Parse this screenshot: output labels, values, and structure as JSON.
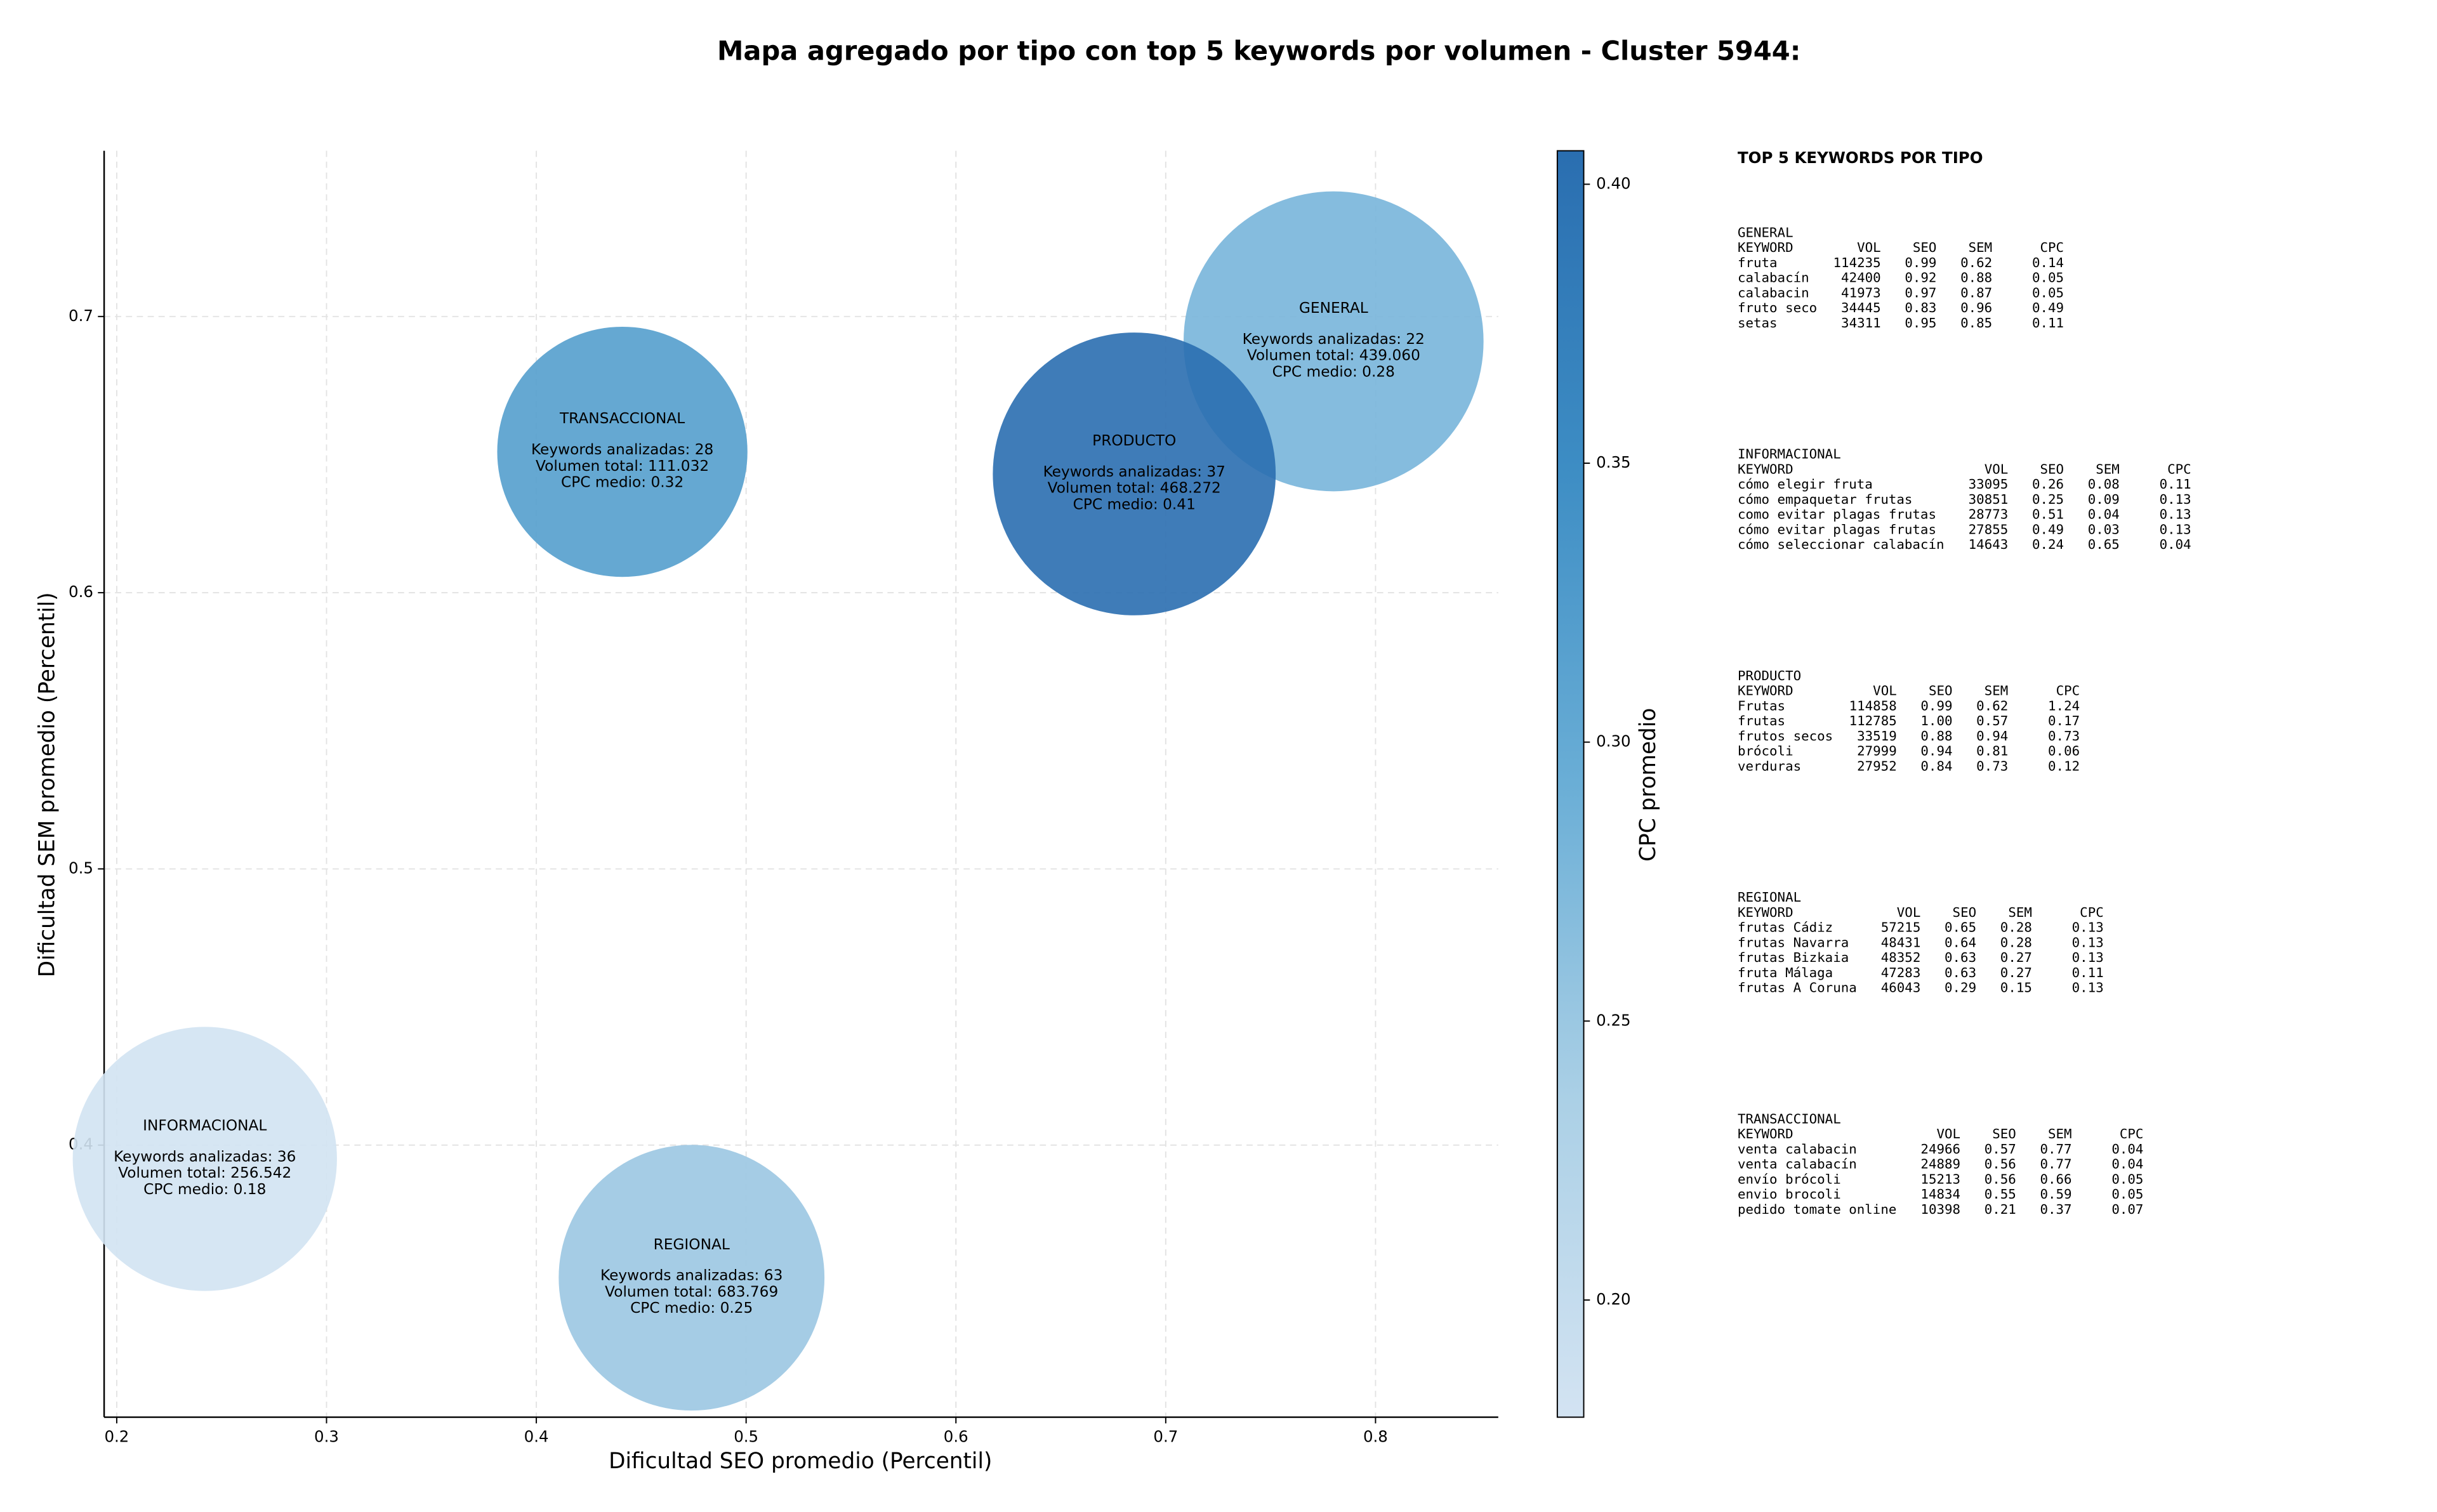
{
  "chart_data": {
    "type": "bubble",
    "title": "Mapa agregado por tipo con top 5 keywords por volumen - Cluster 5944:",
    "x_label": "Dificultad SEO promedio (Percentil)",
    "y_label": "Dificultad SEM promedio (Percentil)",
    "colorbar_label": "CPC promedio",
    "categories": [
      "GENERAL",
      "INFORMACIONAL",
      "PRODUCTO",
      "REGIONAL",
      "TRANSACCIONAL"
    ],
    "x": [
      0.78,
      0.242,
      0.685,
      0.474,
      0.441
    ],
    "values": [
      0.691,
      0.395,
      0.643,
      0.352,
      0.651
    ],
    "sizes": [
      193,
      170,
      182,
      171,
      161
    ],
    "cpc": [
      0.28,
      0.18,
      0.41,
      0.25,
      0.32
    ],
    "annotations": [
      [
        "Keywords analizadas: 22",
        "Volumen total: 439.060",
        "CPC medio: 0.28"
      ],
      [
        "Keywords analizadas: 36",
        "Volumen total: 256.542",
        "CPC medio: 0.18"
      ],
      [
        "Keywords analizadas: 37",
        "Volumen total: 468.272",
        "CPC medio: 0.41"
      ],
      [
        "Keywords analizadas: 63",
        "Volumen total: 683.769",
        "CPC medio: 0.25"
      ],
      [
        "Keywords analizadas: 28",
        "Volumen total: 111.032",
        "CPC medio: 0.32"
      ]
    ],
    "xlim": [
      0.194,
      0.8585
    ],
    "ylim": [
      0.3015,
      0.76
    ],
    "xticks": [
      0.2,
      0.3,
      0.4,
      0.5,
      0.6,
      0.7,
      0.8
    ],
    "yticks": [
      0.4,
      0.5,
      0.6,
      0.7
    ],
    "clim": [
      0.179,
      0.406
    ],
    "cticks": [
      {
        "value": 0.2,
        "label": "0.20"
      },
      {
        "value": 0.25,
        "label": "0.25"
      },
      {
        "value": 0.3,
        "label": "0.30"
      },
      {
        "value": 0.35,
        "label": "0.35"
      },
      {
        "value": 0.4,
        "label": "0.40"
      }
    ],
    "colormap": [
      "#d3e3f2",
      "#abd0e6",
      "#6aaed6",
      "#3d8dc4",
      "#2a6eb0"
    ],
    "grid": true
  },
  "keyword_tables": {
    "title": "TOP 5 KEYWORDS POR TIPO",
    "columns": [
      "KEYWORD",
      "VOL",
      "SEO",
      "SEM",
      "CPC"
    ],
    "groups": [
      {
        "name": "GENERAL",
        "rows": [
          [
            "fruta",
            "114235",
            "0.99",
            "0.62",
            "0.14"
          ],
          [
            "calabacín",
            "42400",
            "0.92",
            "0.88",
            "0.05"
          ],
          [
            "calabacin",
            "41973",
            "0.97",
            "0.87",
            "0.05"
          ],
          [
            "fruto seco",
            "34445",
            "0.83",
            "0.96",
            "0.49"
          ],
          [
            "setas",
            "34311",
            "0.95",
            "0.85",
            "0.11"
          ]
        ]
      },
      {
        "name": "INFORMACIONAL",
        "rows": [
          [
            "cómo elegir fruta",
            "33095",
            "0.26",
            "0.08",
            "0.11"
          ],
          [
            "cómo empaquetar frutas",
            "30851",
            "0.25",
            "0.09",
            "0.13"
          ],
          [
            "como evitar plagas frutas",
            "28773",
            "0.51",
            "0.04",
            "0.13"
          ],
          [
            "cómo evitar plagas frutas",
            "27855",
            "0.49",
            "0.03",
            "0.13"
          ],
          [
            "cómo seleccionar calabacín",
            "14643",
            "0.24",
            "0.65",
            "0.04"
          ]
        ]
      },
      {
        "name": "PRODUCTO",
        "rows": [
          [
            "Frutas",
            "114858",
            "0.99",
            "0.62",
            "1.24"
          ],
          [
            "frutas",
            "112785",
            "1.00",
            "0.57",
            "0.17"
          ],
          [
            "frutos secos",
            "33519",
            "0.88",
            "0.94",
            "0.73"
          ],
          [
            "brócoli",
            "27999",
            "0.94",
            "0.81",
            "0.06"
          ],
          [
            "verduras",
            "27952",
            "0.84",
            "0.73",
            "0.12"
          ]
        ]
      },
      {
        "name": "REGIONAL",
        "rows": [
          [
            "frutas Cádiz",
            "57215",
            "0.65",
            "0.28",
            "0.13"
          ],
          [
            "frutas Navarra",
            "48431",
            "0.64",
            "0.28",
            "0.13"
          ],
          [
            "frutas Bizkaia",
            "48352",
            "0.63",
            "0.27",
            "0.13"
          ],
          [
            "fruta Málaga",
            "47283",
            "0.63",
            "0.27",
            "0.11"
          ],
          [
            "frutas A Coruna",
            "46043",
            "0.29",
            "0.15",
            "0.13"
          ]
        ]
      },
      {
        "name": "TRANSACCIONAL",
        "rows": [
          [
            "venta calabacin",
            "24966",
            "0.57",
            "0.77",
            "0.04"
          ],
          [
            "venta calabacín",
            "24889",
            "0.56",
            "0.77",
            "0.04"
          ],
          [
            "envío brócoli",
            "15213",
            "0.56",
            "0.66",
            "0.05"
          ],
          [
            "envio brocoli",
            "14834",
            "0.55",
            "0.59",
            "0.05"
          ],
          [
            "pedido tomate online",
            "10398",
            "0.21",
            "0.37",
            "0.07"
          ]
        ]
      }
    ]
  }
}
